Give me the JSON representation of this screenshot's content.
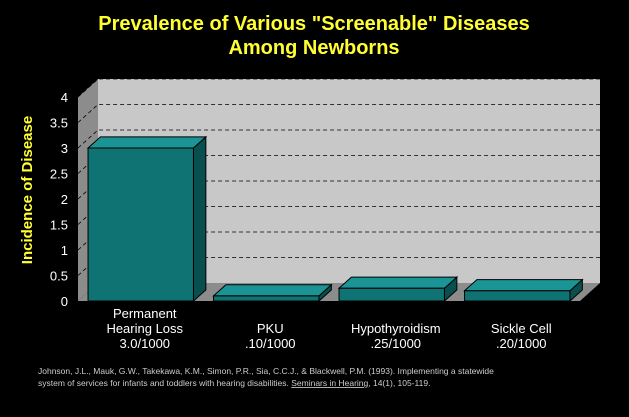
{
  "chart_data": {
    "type": "bar",
    "title_lines": [
      "Prevalence of Various \"Screenable\" Diseases",
      "Among Newborns"
    ],
    "ylabel": "Incidence of Disease",
    "ylim": [
      0,
      4
    ],
    "yticks": [
      "0",
      "0.5",
      "1",
      "1.5",
      "2",
      "2.5",
      "3",
      "3.5",
      "4"
    ],
    "categories": [
      [
        "Permanent",
        "Hearing Loss",
        "3.0/1000"
      ],
      [
        "PKU",
        ".10/1000"
      ],
      [
        "Hypothyroidism",
        ".25/1000"
      ],
      [
        "Sickle Cell",
        ".20/1000"
      ]
    ],
    "values": [
      3.0,
      0.1,
      0.25,
      0.2
    ],
    "grid": true,
    "style": "3d",
    "colors": {
      "background": "#000000",
      "title": "#ffff33",
      "ylabel": "#ffff33",
      "wall": "#c8c8c8",
      "floor": "#8c8c8c",
      "bar_front": "#0f7373",
      "bar_top": "#1a9494",
      "bar_side": "#0a4f4f"
    }
  },
  "citation": {
    "line1": "Johnson, J.L., Mauk, G.W., Takekawa, K.M., Simon, P.R., Sia, C.C.J., & Blackwell, P.M. (1993).  Implementing a statewide",
    "line2_start": "system of services for infants and toddlers with hearing disabilities.  ",
    "journal": "Seminars in Hearing",
    "line2_end": ", 14(1), 105-119."
  }
}
